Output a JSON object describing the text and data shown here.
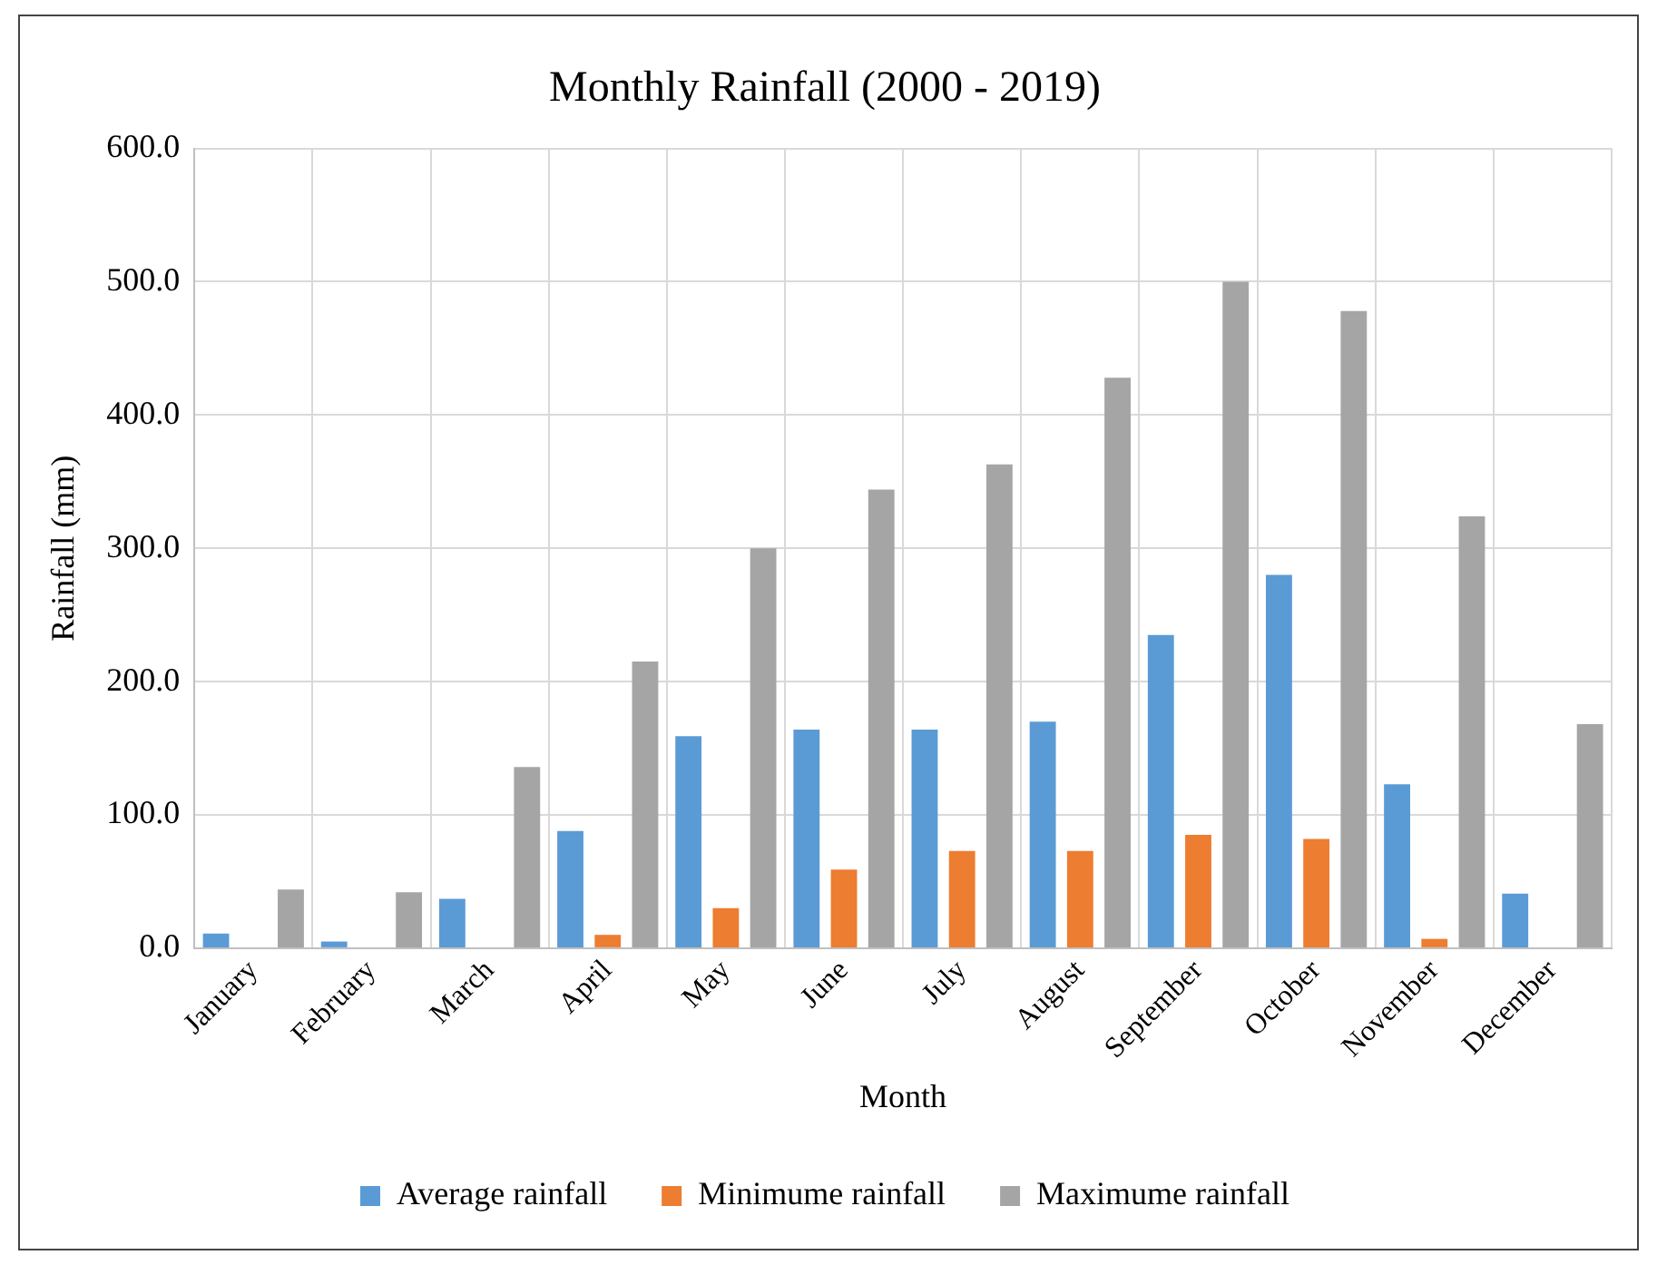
{
  "chart_data": {
    "type": "bar",
    "title": "Monthly Rainfall (2000 - 2019)",
    "xlabel": "Month",
    "ylabel": "Rainfall (mm)",
    "categories": [
      "January",
      "February",
      "March",
      "April",
      "May",
      "June",
      "July",
      "August",
      "September",
      "October",
      "November",
      "December"
    ],
    "series": [
      {
        "name": "Average rainfall",
        "color": "#5b9bd5",
        "values": [
          11,
          5,
          37,
          88,
          159,
          164,
          164,
          170,
          235,
          280,
          123,
          41
        ]
      },
      {
        "name": "Minimume rainfall",
        "color": "#ed7d31",
        "values": [
          0,
          0,
          0,
          10,
          30,
          59,
          73,
          73,
          85,
          82,
          7,
          0
        ]
      },
      {
        "name": "Maximume rainfall",
        "color": "#a5a5a5",
        "values": [
          44,
          42,
          136,
          215,
          300,
          344,
          363,
          428,
          500,
          478,
          324,
          168
        ]
      }
    ],
    "ylim": [
      0,
      600
    ],
    "yticks": [
      {
        "value": 0,
        "label": "0.0"
      },
      {
        "value": 100,
        "label": "100.0"
      },
      {
        "value": 200,
        "label": "200.0"
      },
      {
        "value": 300,
        "label": "300.0"
      },
      {
        "value": 400,
        "label": "400.0"
      },
      {
        "value": 500,
        "label": "500.0"
      },
      {
        "value": 600,
        "label": "600.0"
      }
    ],
    "grid": true,
    "legend": "bottom"
  }
}
